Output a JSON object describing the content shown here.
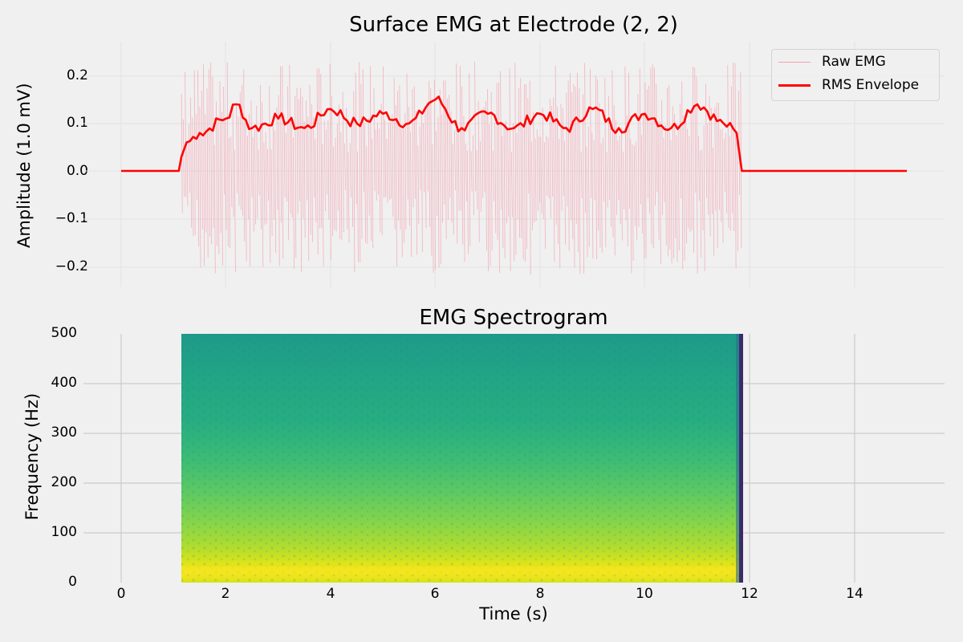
{
  "figure": {
    "background": "#f0f0f0",
    "style": "fivethirtyeight"
  },
  "top_plot": {
    "title": "Surface EMG at Electrode (2, 2)",
    "ylabel": "Amplitude (1.0 mV)",
    "yticks": [
      "0.2",
      "0.1",
      "0.0",
      "−0.1",
      "−0.2"
    ],
    "legend": {
      "raw_label": "Raw EMG",
      "rms_label": "RMS Envelope"
    },
    "colors": {
      "raw": "#f4a0ae",
      "rms": "#ff0000"
    }
  },
  "bottom_plot": {
    "title": "EMG Spectrogram",
    "ylabel": "Frequency (Hz)",
    "xlabel": "Time (s)",
    "yticks": [
      "500",
      "400",
      "300",
      "200",
      "100",
      "0"
    ],
    "xticks": [
      "0",
      "2",
      "4",
      "6",
      "8",
      "10",
      "12",
      "14"
    ],
    "colormap": "viridis"
  },
  "chart_data": [
    {
      "type": "line",
      "title": "Surface EMG at Electrode (2, 2)",
      "xlabel": "",
      "ylabel": "Amplitude (1.0 mV)",
      "xlim": [
        -0.4,
        15.7
      ],
      "ylim": [
        -0.25,
        0.27
      ],
      "grid": true,
      "legend_position": "upper right",
      "series": [
        {
          "name": "Raw EMG",
          "color": "#f4a0ae",
          "description": "Burst of noisy oscillation between ~1.15 s and ~11.85 s, peaks roughly within ±0.25; zero outside burst",
          "active_interval": [
            1.15,
            11.85
          ],
          "amplitude_range": [
            -0.23,
            0.25
          ]
        },
        {
          "name": "RMS Envelope",
          "color": "#ff0000",
          "x": [
            0,
            1.1,
            1.15,
            1.25,
            1.5,
            2.0,
            2.2,
            2.5,
            3.0,
            3.5,
            4.0,
            4.5,
            5.0,
            5.5,
            6.0,
            6.5,
            7.0,
            7.5,
            8.0,
            8.5,
            9.0,
            9.5,
            10.0,
            10.5,
            11.0,
            11.5,
            11.75,
            11.85,
            15.0
          ],
          "y": [
            0.0,
            0.0,
            0.03,
            0.06,
            0.08,
            0.11,
            0.14,
            0.09,
            0.11,
            0.09,
            0.13,
            0.1,
            0.12,
            0.1,
            0.15,
            0.09,
            0.12,
            0.09,
            0.12,
            0.09,
            0.13,
            0.09,
            0.12,
            0.09,
            0.14,
            0.1,
            0.08,
            0.0,
            0.0
          ]
        }
      ]
    },
    {
      "type": "heatmap",
      "title": "EMG Spectrogram",
      "xlabel": "Time (s)",
      "ylabel": "Frequency (Hz)",
      "xlim": [
        -0.4,
        15.7
      ],
      "ylim": [
        0,
        500
      ],
      "xticks": [
        0,
        2,
        4,
        6,
        8,
        10,
        12,
        14
      ],
      "yticks": [
        0,
        100,
        200,
        300,
        400,
        500
      ],
      "colormap": "viridis",
      "time_extent": [
        1.15,
        11.85
      ],
      "description": "Power highest (yellow) at 0-50 Hz with peak band near 20-30 Hz, decreasing through green to teal above ~250 Hz; dark purple edge at ~11.85 s"
    }
  ]
}
